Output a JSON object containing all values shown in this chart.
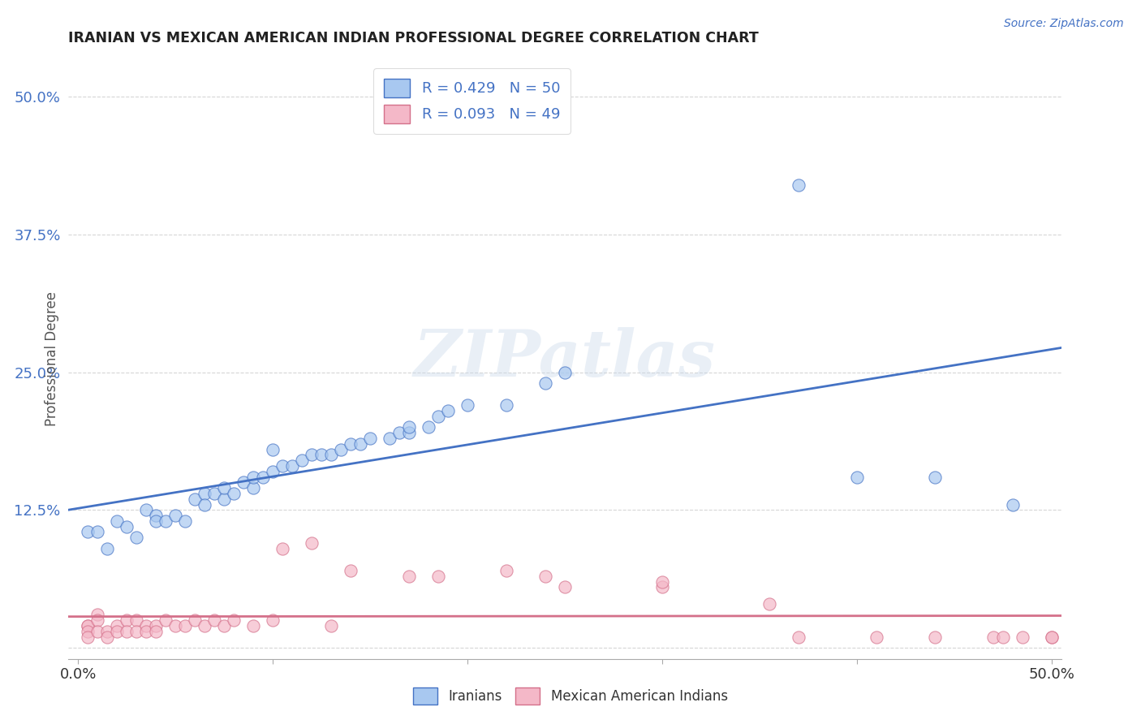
{
  "title": "IRANIAN VS MEXICAN AMERICAN INDIAN PROFESSIONAL DEGREE CORRELATION CHART",
  "source": "Source: ZipAtlas.com",
  "ylabel": "Professional Degree",
  "xlim": [
    -0.005,
    0.505
  ],
  "ylim": [
    -0.01,
    0.535
  ],
  "xticks": [
    0.0,
    0.1,
    0.2,
    0.3,
    0.4,
    0.5
  ],
  "xtick_labels": [
    "0.0%",
    "",
    "",
    "",
    "",
    "50.0%"
  ],
  "yticks": [
    0.0,
    0.125,
    0.25,
    0.375,
    0.5
  ],
  "ytick_labels": [
    "",
    "12.5%",
    "25.0%",
    "37.5%",
    "50.0%"
  ],
  "watermark": "ZIPatlas",
  "color_iranian": "#a8c8f0",
  "color_mexican": "#f4b8c8",
  "color_line_iranian": "#4472c4",
  "color_line_mexican": "#d4708a",
  "background_color": "#ffffff",
  "grid_color": "#cccccc",
  "iranians_x": [
    0.005,
    0.01,
    0.015,
    0.02,
    0.025,
    0.03,
    0.035,
    0.04,
    0.04,
    0.045,
    0.05,
    0.055,
    0.06,
    0.065,
    0.065,
    0.07,
    0.075,
    0.075,
    0.08,
    0.085,
    0.09,
    0.09,
    0.095,
    0.1,
    0.1,
    0.105,
    0.11,
    0.115,
    0.12,
    0.125,
    0.13,
    0.135,
    0.14,
    0.145,
    0.15,
    0.16,
    0.165,
    0.17,
    0.17,
    0.18,
    0.185,
    0.19,
    0.2,
    0.22,
    0.24,
    0.25,
    0.37,
    0.4,
    0.44,
    0.48
  ],
  "iranians_y": [
    0.105,
    0.105,
    0.09,
    0.115,
    0.11,
    0.1,
    0.125,
    0.12,
    0.115,
    0.115,
    0.12,
    0.115,
    0.135,
    0.14,
    0.13,
    0.14,
    0.135,
    0.145,
    0.14,
    0.15,
    0.145,
    0.155,
    0.155,
    0.16,
    0.18,
    0.165,
    0.165,
    0.17,
    0.175,
    0.175,
    0.175,
    0.18,
    0.185,
    0.185,
    0.19,
    0.19,
    0.195,
    0.195,
    0.2,
    0.2,
    0.21,
    0.215,
    0.22,
    0.22,
    0.24,
    0.25,
    0.42,
    0.155,
    0.155,
    0.13
  ],
  "mexicans_x": [
    0.005,
    0.005,
    0.005,
    0.005,
    0.01,
    0.01,
    0.01,
    0.015,
    0.015,
    0.02,
    0.02,
    0.025,
    0.025,
    0.03,
    0.03,
    0.035,
    0.035,
    0.04,
    0.04,
    0.045,
    0.05,
    0.055,
    0.06,
    0.065,
    0.07,
    0.075,
    0.08,
    0.09,
    0.1,
    0.105,
    0.12,
    0.13,
    0.14,
    0.17,
    0.185,
    0.22,
    0.24,
    0.25,
    0.3,
    0.3,
    0.355,
    0.37,
    0.41,
    0.44,
    0.47,
    0.475,
    0.485,
    0.5,
    0.5
  ],
  "mexicans_y": [
    0.02,
    0.02,
    0.015,
    0.01,
    0.03,
    0.025,
    0.015,
    0.015,
    0.01,
    0.02,
    0.015,
    0.025,
    0.015,
    0.025,
    0.015,
    0.02,
    0.015,
    0.02,
    0.015,
    0.025,
    0.02,
    0.02,
    0.025,
    0.02,
    0.025,
    0.02,
    0.025,
    0.02,
    0.025,
    0.09,
    0.095,
    0.02,
    0.07,
    0.065,
    0.065,
    0.07,
    0.065,
    0.055,
    0.055,
    0.06,
    0.04,
    0.01,
    0.01,
    0.01,
    0.01,
    0.01,
    0.01,
    0.01,
    0.01
  ]
}
